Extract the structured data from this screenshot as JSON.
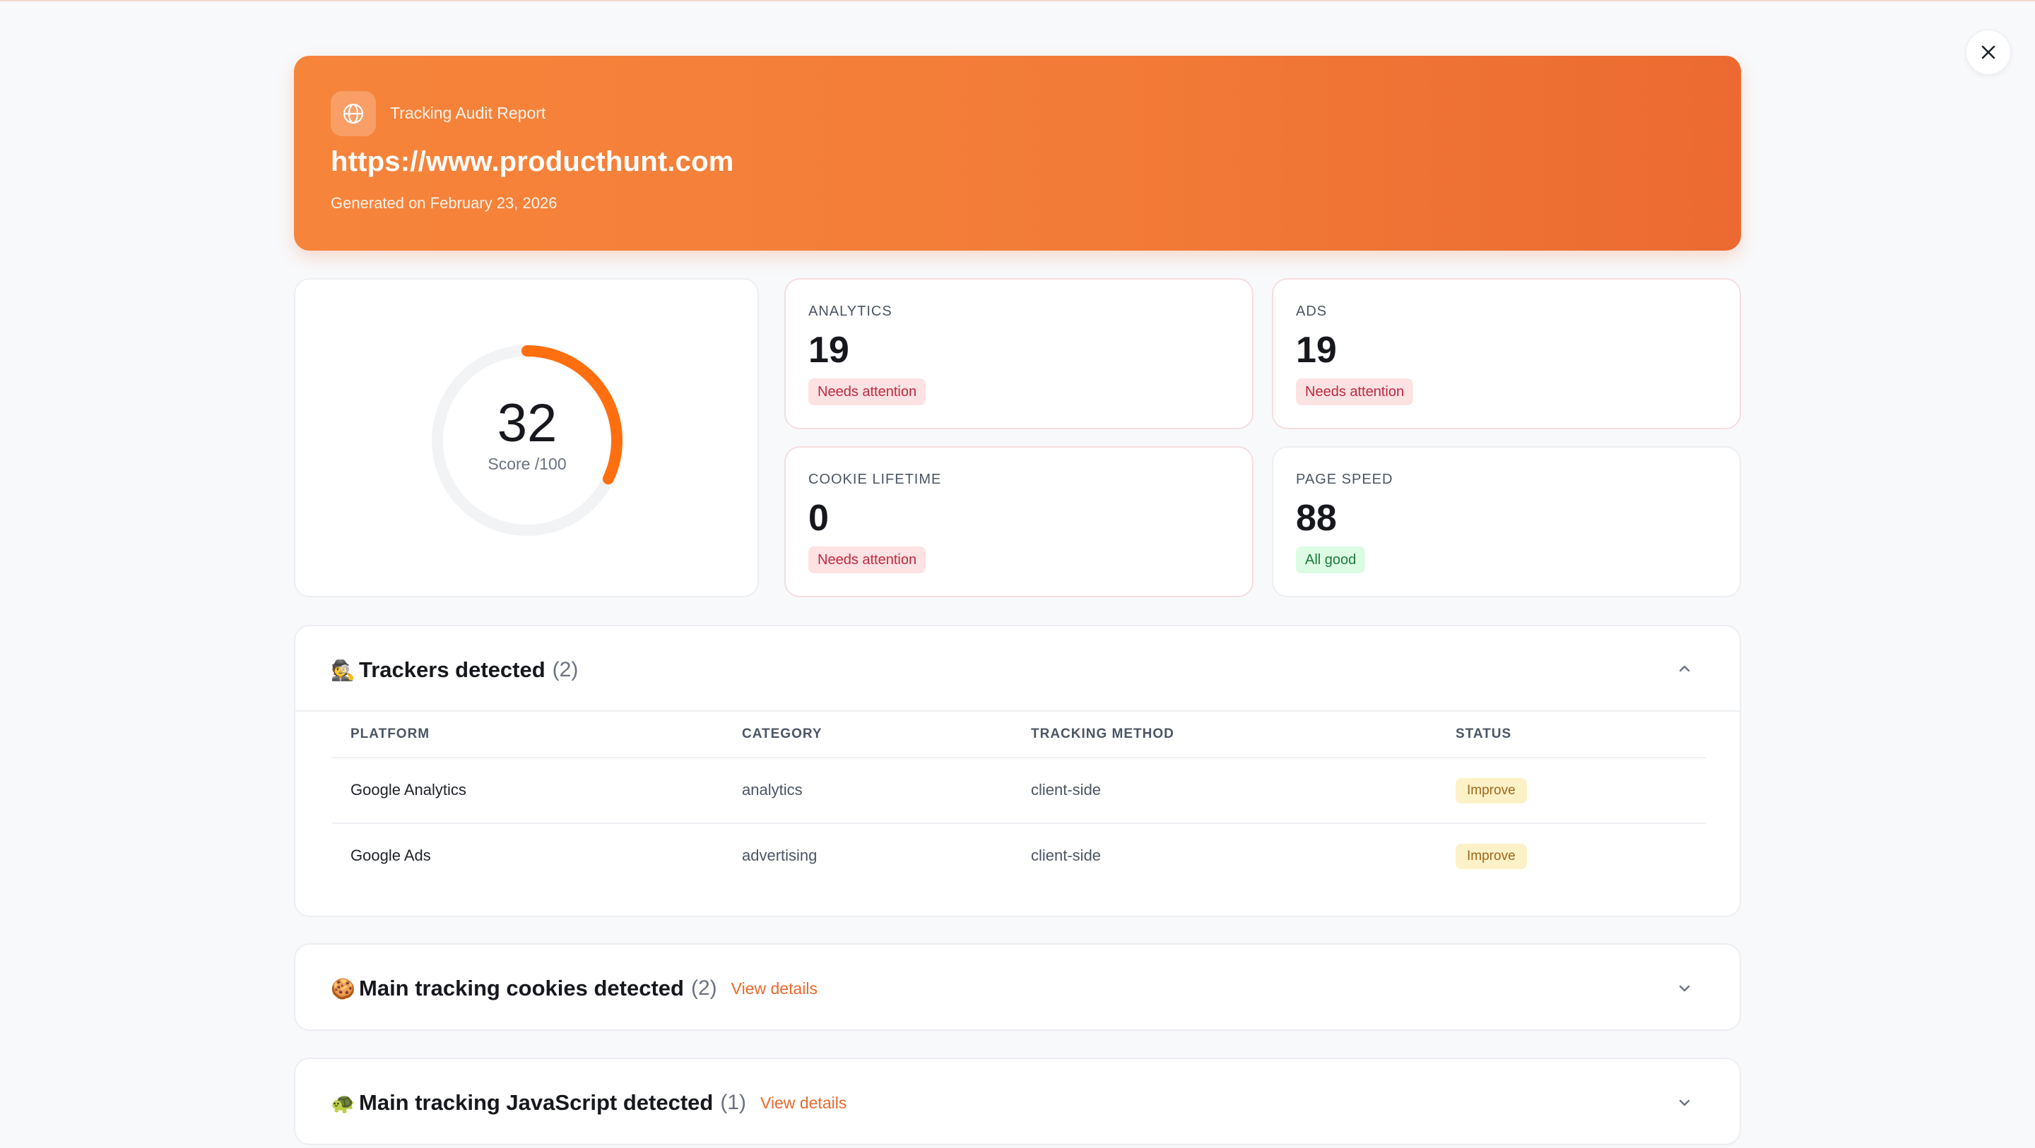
{
  "hero": {
    "kicker": "Tracking Audit Report",
    "url": "https://www.producthunt.com",
    "generated": "Generated on February 23, 2026"
  },
  "score": {
    "value": "32",
    "label": "Score /100",
    "fraction": 0.32,
    "color": "#ff6f0f"
  },
  "metrics": [
    {
      "label": "ANALYTICS",
      "value": "19",
      "status": "Needs attention",
      "tone": "bad"
    },
    {
      "label": "ADS",
      "value": "19",
      "status": "Needs attention",
      "tone": "bad"
    },
    {
      "label": "COOKIE LIFETIME",
      "value": "0",
      "status": "Needs attention",
      "tone": "bad"
    },
    {
      "label": "PAGE SPEED",
      "value": "88",
      "status": "All good",
      "tone": "good"
    }
  ],
  "trackers": {
    "emoji": "🕵️",
    "title": "Trackers detected",
    "count": "(2)",
    "columns": [
      "PLATFORM",
      "CATEGORY",
      "TRACKING METHOD",
      "STATUS"
    ],
    "rows": [
      {
        "platform": "Google Analytics",
        "category": "analytics",
        "method": "client-side",
        "status": "Improve"
      },
      {
        "platform": "Google Ads",
        "category": "advertising",
        "method": "client-side",
        "status": "Improve"
      }
    ]
  },
  "cookies": {
    "emoji": "🍪",
    "title": "Main tracking cookies detected",
    "count": "(2)",
    "link": "View details"
  },
  "scripts": {
    "emoji": "🐢",
    "title": "Main tracking JavaScript detected",
    "count": "(1)",
    "link": "View details"
  },
  "colors": {
    "accent": "#f27c37",
    "danger": "#c0283f",
    "success": "#1d7a3a",
    "warning": "#a0661a"
  },
  "icons": [
    "globe-icon",
    "close-icon",
    "chevron-up-icon",
    "chevron-down-icon"
  ]
}
